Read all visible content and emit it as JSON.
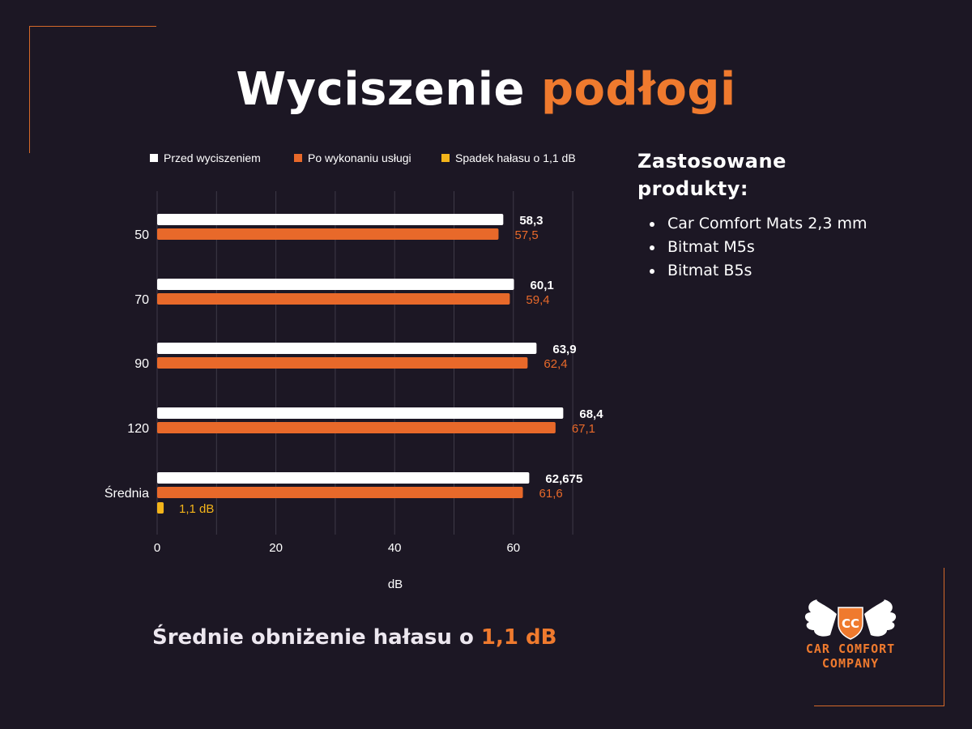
{
  "title": {
    "part1": "Wyciszenie",
    "part2": "podłogi"
  },
  "chart_data": {
    "type": "bar",
    "orientation": "horizontal",
    "categories": [
      "50",
      "70",
      "90",
      "120",
      "Średnia"
    ],
    "series": [
      {
        "name": "Przed wyciszeniem",
        "color": "#ffffff",
        "values": [
          58.3,
          60.1,
          63.9,
          68.4,
          62.675
        ],
        "labels": [
          "58,3",
          "60,1",
          "63,9",
          "68,4",
          "62,675"
        ]
      },
      {
        "name": "Po wykonaniu usługi",
        "color": "#e8692a",
        "values": [
          57.5,
          59.4,
          62.4,
          67.1,
          61.6
        ],
        "labels": [
          "57,5",
          "59,4",
          "62,4",
          "67,1",
          "61,6"
        ]
      },
      {
        "name": "Spadek hałasu o 1,1 dB",
        "color": "#f3b41a",
        "values": [
          null,
          null,
          null,
          null,
          1.1
        ],
        "labels": [
          null,
          null,
          null,
          null,
          "1,1 dB"
        ]
      }
    ],
    "xlabel": "dB",
    "xlim": [
      0,
      70
    ],
    "xticks": [
      0,
      20,
      40,
      60
    ],
    "grid": true,
    "legend": "top"
  },
  "side": {
    "heading_line1": "Zastosowane",
    "heading_line2": "produkty:",
    "products": [
      "Car Comfort Mats 2,3 mm",
      "Bitmat M5s",
      "Bitmat B5s"
    ]
  },
  "summary": {
    "prefix": "Średnie obniżenie hałasu o ",
    "value": "1,1 dB"
  },
  "logo": {
    "line1": "CAR COMFORT",
    "line2": "COMPANY",
    "monogram": "CC"
  }
}
